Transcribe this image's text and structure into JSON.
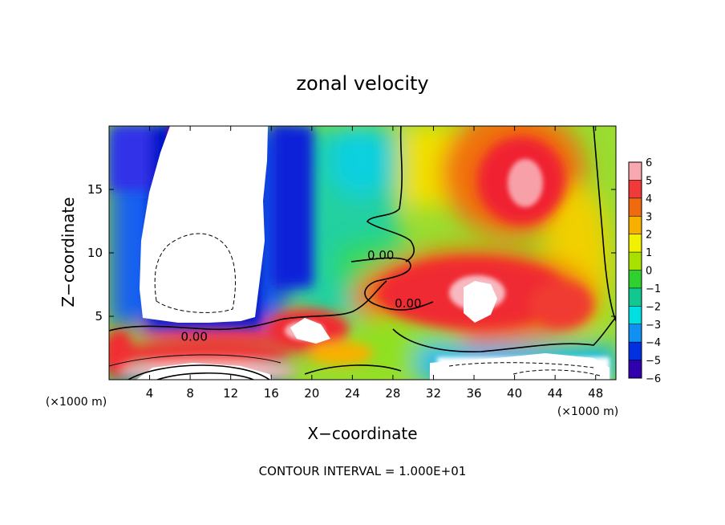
{
  "chart_data": {
    "type": "heatmap",
    "title": "zonal velocity",
    "xlabel": "X−coordinate",
    "ylabel": "Z−coordinate",
    "x_unit_label": "(×1000 m)",
    "z_unit_label": "(×1000 m)",
    "footer": "CONTOUR INTERVAL = 1.000E+01",
    "xlim": [
      0,
      50
    ],
    "ylim": [
      0,
      20
    ],
    "x_ticks": [
      4,
      8,
      12,
      16,
      20,
      24,
      28,
      32,
      36,
      40,
      44,
      48
    ],
    "y_ticks": [
      5,
      10,
      15
    ],
    "colorbar": {
      "levels": [
        6,
        5,
        4,
        3,
        2,
        1,
        0,
        -1,
        -2,
        -3,
        -4,
        -5,
        -6
      ],
      "colors": [
        "#f7a8b0",
        "#f03a3a",
        "#f06a10",
        "#f8b000",
        "#f0f000",
        "#a8e000",
        "#30d030",
        "#10c890",
        "#00e0e0",
        "#1090f0",
        "#0030e0",
        "#3000b0",
        "#7000a0"
      ]
    },
    "contour_labels": [
      {
        "text": "0.00",
        "x": 8.4,
        "z": 3.4
      },
      {
        "text": "0.00",
        "x": 26.8,
        "z": 9.8
      },
      {
        "text": "0.00",
        "x": 29.5,
        "z": 6.0
      }
    ]
  }
}
